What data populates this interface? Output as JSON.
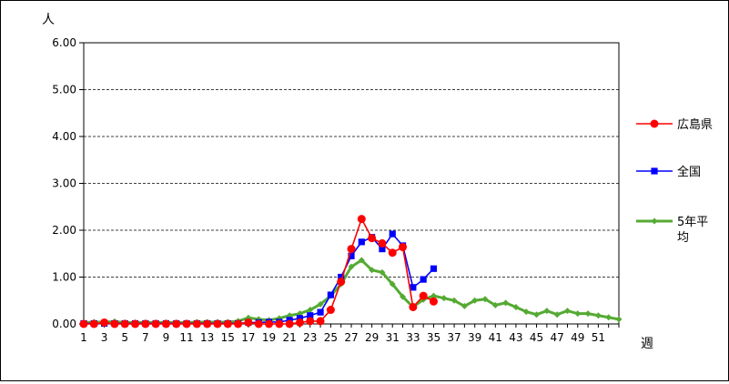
{
  "chart_data": {
    "type": "line",
    "title": "",
    "ylabel": "人",
    "xlabel": "週",
    "ylim": [
      0,
      6
    ],
    "xlim": [
      1,
      53
    ],
    "y_ticks": [
      "0.00",
      "1.00",
      "2.00",
      "3.00",
      "4.00",
      "5.00",
      "6.00"
    ],
    "x_ticks": [
      "1",
      "3",
      "5",
      "7",
      "9",
      "11",
      "13",
      "15",
      "17",
      "19",
      "21",
      "23",
      "25",
      "27",
      "29",
      "31",
      "33",
      "35",
      "37",
      "39",
      "41",
      "43",
      "45",
      "47",
      "49",
      "51"
    ],
    "grid": "horizontal dashed",
    "legend_position": "right",
    "series": [
      {
        "name": "広島県",
        "color": "#ff0000",
        "marker": "circle",
        "x": [
          1,
          2,
          3,
          4,
          5,
          6,
          7,
          8,
          9,
          10,
          11,
          12,
          13,
          14,
          15,
          16,
          17,
          18,
          19,
          20,
          21,
          22,
          23,
          24,
          25,
          26,
          27,
          28,
          29,
          30,
          31,
          32,
          33,
          34,
          35
        ],
        "values": [
          0.0,
          0.0,
          0.03,
          0.0,
          0.0,
          0.0,
          0.0,
          0.0,
          0.0,
          0.0,
          0.0,
          0.0,
          0.0,
          0.0,
          0.0,
          0.0,
          0.03,
          0.0,
          0.0,
          0.0,
          0.0,
          0.03,
          0.06,
          0.06,
          0.3,
          0.9,
          1.6,
          2.24,
          1.83,
          1.72,
          1.52,
          1.64,
          0.36,
          0.6,
          0.48
        ]
      },
      {
        "name": "全国",
        "color": "#0000ff",
        "marker": "square",
        "x": [
          1,
          2,
          3,
          4,
          5,
          6,
          7,
          8,
          9,
          10,
          11,
          12,
          13,
          14,
          15,
          16,
          17,
          18,
          19,
          20,
          21,
          22,
          23,
          24,
          25,
          26,
          27,
          28,
          29,
          30,
          31,
          32,
          33,
          34,
          35
        ],
        "values": [
          0.01,
          0.01,
          0.01,
          0.01,
          0.01,
          0.01,
          0.01,
          0.01,
          0.01,
          0.01,
          0.01,
          0.01,
          0.01,
          0.01,
          0.01,
          0.01,
          0.03,
          0.03,
          0.04,
          0.04,
          0.08,
          0.12,
          0.18,
          0.25,
          0.62,
          1.0,
          1.45,
          1.75,
          1.85,
          1.6,
          1.92,
          1.67,
          0.78,
          0.95,
          1.18
        ]
      },
      {
        "name": "5年平均",
        "color": "#55aa33",
        "marker": "diamond",
        "x": [
          1,
          2,
          3,
          4,
          5,
          6,
          7,
          8,
          9,
          10,
          11,
          12,
          13,
          14,
          15,
          16,
          17,
          18,
          19,
          20,
          21,
          22,
          23,
          24,
          25,
          26,
          27,
          28,
          29,
          30,
          31,
          32,
          33,
          34,
          35,
          36,
          37,
          38,
          39,
          40,
          41,
          42,
          43,
          44,
          45,
          46,
          47,
          48,
          49,
          50,
          51,
          52,
          53
        ],
        "values": [
          0.03,
          0.04,
          0.04,
          0.05,
          0.03,
          0.03,
          0.03,
          0.03,
          0.03,
          0.03,
          0.03,
          0.04,
          0.04,
          0.04,
          0.04,
          0.06,
          0.13,
          0.1,
          0.08,
          0.12,
          0.18,
          0.22,
          0.3,
          0.42,
          0.6,
          0.85,
          1.22,
          1.36,
          1.15,
          1.1,
          0.85,
          0.58,
          0.36,
          0.52,
          0.6,
          0.55,
          0.5,
          0.38,
          0.5,
          0.53,
          0.4,
          0.45,
          0.36,
          0.26,
          0.2,
          0.28,
          0.2,
          0.28,
          0.22,
          0.22,
          0.18,
          0.14,
          0.1
        ]
      }
    ]
  }
}
